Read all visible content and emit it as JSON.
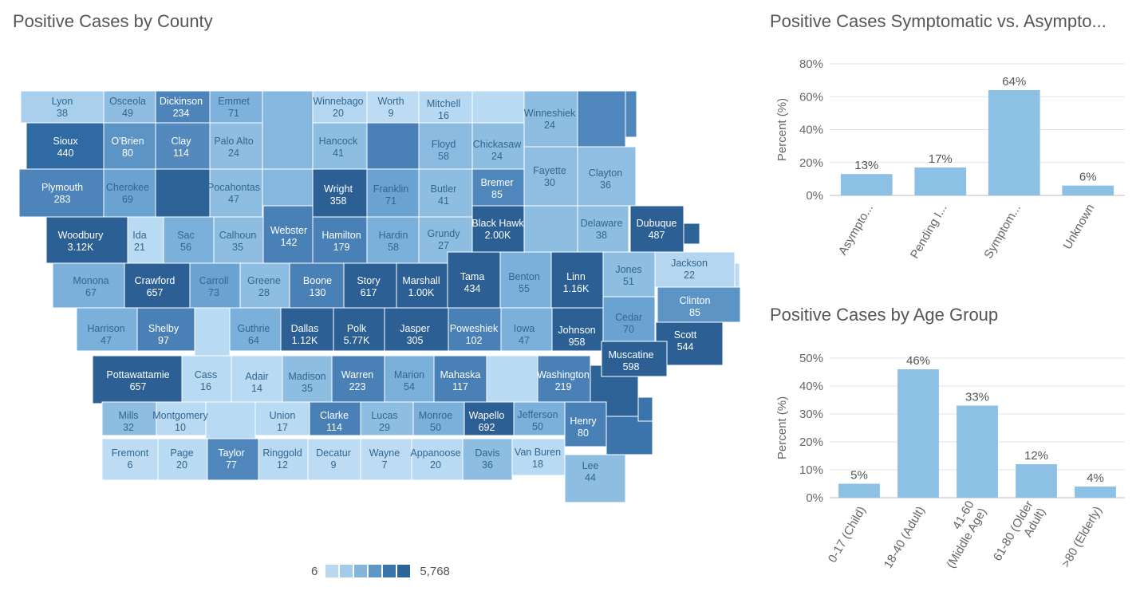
{
  "map": {
    "title": "Positive Cases by County",
    "legend": {
      "min_label": "6",
      "max_label": "5,768",
      "colors": [
        "#bad9f1",
        "#a3cbea",
        "#82b6dd",
        "#5d97c5",
        "#3a74ab",
        "#2e6398"
      ]
    },
    "counties": [
      {
        "name": "Lyon",
        "value": "38",
        "c": "#a9cfec"
      },
      {
        "name": "Osceola",
        "value": "49",
        "c": "#8fbde2"
      },
      {
        "name": "Dickinson",
        "value": "234",
        "c": "#4d85ba"
      },
      {
        "name": "Emmet",
        "value": "71",
        "c": "#7eb2dc"
      },
      {
        "name": "Winnebago",
        "value": "20",
        "c": "#b4d6f1"
      },
      {
        "name": "Worth",
        "value": "9",
        "c": "#bddcf3"
      },
      {
        "name": "Mitchell",
        "value": "16",
        "c": "#b6d8f2"
      },
      {
        "name": "Winneshiek",
        "value": "24",
        "c": "#8ebde2"
      },
      {
        "name": "Sioux",
        "value": "440",
        "c": "#2f6aa3"
      },
      {
        "name": "O'Brien",
        "value": "80",
        "c": "#5d94c6"
      },
      {
        "name": "Clay",
        "value": "114",
        "c": "#5389bd"
      },
      {
        "name": "Palo Alto",
        "value": "24",
        "c": "#8fbde2"
      },
      {
        "name": "Hancock",
        "value": "41",
        "c": "#8ebde2"
      },
      {
        "name": "Floyd",
        "value": "58",
        "c": "#8abadf"
      },
      {
        "name": "Chickasaw",
        "value": "24",
        "c": "#8ebde2"
      },
      {
        "name": "Plymouth",
        "value": "283",
        "c": "#4d85ba"
      },
      {
        "name": "Cherokee",
        "value": "69",
        "c": "#6aa3d2"
      },
      {
        "name": "Pocahontas",
        "value": "47",
        "c": "#8ebde2"
      },
      {
        "name": "Wright",
        "value": "358",
        "c": "#2c5f94"
      },
      {
        "name": "Franklin",
        "value": "71",
        "c": "#6aa3d2"
      },
      {
        "name": "Butler",
        "value": "41",
        "c": "#8ebde2"
      },
      {
        "name": "Bremer",
        "value": "85",
        "c": "#4f86bb"
      },
      {
        "name": "Fayette",
        "value": "30",
        "c": "#90bee3"
      },
      {
        "name": "Clayton",
        "value": "36",
        "c": "#90bee3"
      },
      {
        "name": "Woodbury",
        "value": "3.12K",
        "c": "#2c5f94"
      },
      {
        "name": "Ida",
        "value": "21",
        "c": "#b8daf3"
      },
      {
        "name": "Sac",
        "value": "56",
        "c": "#7bb0db"
      },
      {
        "name": "Calhoun",
        "value": "35",
        "c": "#8ebde2"
      },
      {
        "name": "Webster",
        "value": "142",
        "c": "#4980b6"
      },
      {
        "name": "Hamilton",
        "value": "179",
        "c": "#4980b6"
      },
      {
        "name": "Hardin",
        "value": "58",
        "c": "#7bb0db"
      },
      {
        "name": "Grundy",
        "value": "27",
        "c": "#8ebde2"
      },
      {
        "name": "Black Hawk",
        "value": "2.00K",
        "c": "#2c5f94"
      },
      {
        "name": "Delaware",
        "value": "38",
        "c": "#8ebde2"
      },
      {
        "name": "Dubuque",
        "value": "487",
        "c": "#2c5f94"
      },
      {
        "name": "Monona",
        "value": "67",
        "c": "#7bb0db"
      },
      {
        "name": "Crawford",
        "value": "657",
        "c": "#2c5f94"
      },
      {
        "name": "Carroll",
        "value": "73",
        "c": "#6aa3d2"
      },
      {
        "name": "Greene",
        "value": "28",
        "c": "#8ebde2"
      },
      {
        "name": "Boone",
        "value": "130",
        "c": "#4980b6"
      },
      {
        "name": "Story",
        "value": "617",
        "c": "#2c5f94"
      },
      {
        "name": "Marshall",
        "value": "1.00K",
        "c": "#2c5f94"
      },
      {
        "name": "Tama",
        "value": "434",
        "c": "#2c5f94"
      },
      {
        "name": "Benton",
        "value": "55",
        "c": "#7bb0db"
      },
      {
        "name": "Linn",
        "value": "1.16K",
        "c": "#2c5f94"
      },
      {
        "name": "Jones",
        "value": "51",
        "c": "#8ebde2"
      },
      {
        "name": "Jackson",
        "value": "22",
        "c": "#b4d6f1"
      },
      {
        "name": "Clinton",
        "value": "85",
        "c": "#5d94c6"
      },
      {
        "name": "Harrison",
        "value": "47",
        "c": "#7bb0db"
      },
      {
        "name": "Shelby",
        "value": "97",
        "c": "#4980b6"
      },
      {
        "name": "Guthrie",
        "value": "64",
        "c": "#7bb0db"
      },
      {
        "name": "Dallas",
        "value": "1.12K",
        "c": "#2c5f94"
      },
      {
        "name": "Polk",
        "value": "5.77K",
        "c": "#2c5f94"
      },
      {
        "name": "Jasper",
        "value": "305",
        "c": "#2c5f94"
      },
      {
        "name": "Poweshiek",
        "value": "102",
        "c": "#4980b6"
      },
      {
        "name": "Iowa",
        "value": "47",
        "c": "#7bb0db"
      },
      {
        "name": "Johnson",
        "value": "958",
        "c": "#2c5f94"
      },
      {
        "name": "Cedar",
        "value": "70",
        "c": "#6aa3d2"
      },
      {
        "name": "Scott",
        "value": "544",
        "c": "#2c5f94"
      },
      {
        "name": "Muscatine",
        "value": "598",
        "c": "#2c5f94"
      },
      {
        "name": "Pottawattamie",
        "value": "657",
        "c": "#2c5f94"
      },
      {
        "name": "Cass",
        "value": "16",
        "c": "#b8daf3"
      },
      {
        "name": "Adair",
        "value": "14",
        "c": "#b8daf3"
      },
      {
        "name": "Madison",
        "value": "35",
        "c": "#8ebde2"
      },
      {
        "name": "Warren",
        "value": "223",
        "c": "#4980b6"
      },
      {
        "name": "Marion",
        "value": "54",
        "c": "#7bb0db"
      },
      {
        "name": "Mahaska",
        "value": "117",
        "c": "#4980b6"
      },
      {
        "name": "Washington",
        "value": "219",
        "c": "#4980b6"
      },
      {
        "name": "Mills",
        "value": "32",
        "c": "#8ebde2"
      },
      {
        "name": "Montgomery",
        "value": "10",
        "c": "#b8daf3"
      },
      {
        "name": "Union",
        "value": "17",
        "c": "#b8daf3"
      },
      {
        "name": "Clarke",
        "value": "114",
        "c": "#4980b6"
      },
      {
        "name": "Lucas",
        "value": "29",
        "c": "#8ebde2"
      },
      {
        "name": "Monroe",
        "value": "50",
        "c": "#7bb0db"
      },
      {
        "name": "Wapello",
        "value": "692",
        "c": "#2c5f94"
      },
      {
        "name": "Jefferson",
        "value": "50",
        "c": "#7bb0db"
      },
      {
        "name": "Henry",
        "value": "80",
        "c": "#4980b6"
      },
      {
        "name": "Fremont",
        "value": "6",
        "c": "#bddcf3"
      },
      {
        "name": "Page",
        "value": "20",
        "c": "#b8daf3"
      },
      {
        "name": "Taylor",
        "value": "77",
        "c": "#4f86bb"
      },
      {
        "name": "Ringgold",
        "value": "12",
        "c": "#b8daf3"
      },
      {
        "name": "Decatur",
        "value": "9",
        "c": "#bddcf3"
      },
      {
        "name": "Wayne",
        "value": "7",
        "c": "#bddcf3"
      },
      {
        "name": "Appanoose",
        "value": "20",
        "c": "#b8daf3"
      },
      {
        "name": "Davis",
        "value": "36",
        "c": "#8ebde2"
      },
      {
        "name": "Van Buren",
        "value": "18",
        "c": "#b8daf3"
      },
      {
        "name": "Lee",
        "value": "44",
        "c": "#8ebde2"
      }
    ]
  },
  "symptom_chart": {
    "title": "Positive Cases Symptomatic vs. Asympto...",
    "ylabel": "Percent (%)"
  },
  "age_chart": {
    "title": "Positive Cases by Age Group",
    "ylabel": "Percent (%)"
  },
  "chart_data": [
    {
      "type": "bar",
      "title": "Positive Cases Symptomatic vs. Asympto...",
      "xlabel": "",
      "ylabel": "Percent (%)",
      "categories": [
        "Asympto...",
        "Pending I...",
        "Symptom...",
        "Unknown"
      ],
      "values": [
        13,
        17,
        64,
        6
      ],
      "data_labels": [
        "13%",
        "17%",
        "64%",
        "6%"
      ],
      "yticks": [
        "0%",
        "20%",
        "40%",
        "60%",
        "80%"
      ],
      "ylim": [
        0,
        80
      ],
      "grid": true,
      "bar_color": "#8cc1e5"
    },
    {
      "type": "bar",
      "title": "Positive Cases by Age Group",
      "xlabel": "",
      "ylabel": "Percent (%)",
      "categories": [
        "0-17 (Child)",
        "18-40 (Adult)",
        "41-60 (Middle Age)",
        "61-80 (Older Adult)",
        ">80 (Elderly)"
      ],
      "category_lines": [
        [
          "0-17 (Child)"
        ],
        [
          "18-40 (Adult)"
        ],
        [
          "41-60",
          "(Middle Age)"
        ],
        [
          "61-80 (Older",
          "Adult)"
        ],
        [
          ">80 (Elderly)"
        ]
      ],
      "values": [
        5,
        46,
        33,
        12,
        4
      ],
      "data_labels": [
        "5%",
        "46%",
        "33%",
        "12%",
        "4%"
      ],
      "yticks": [
        "0%",
        "10%",
        "20%",
        "30%",
        "40%",
        "50%"
      ],
      "ylim": [
        0,
        50
      ],
      "grid": true,
      "bar_color": "#8cc1e5"
    }
  ]
}
